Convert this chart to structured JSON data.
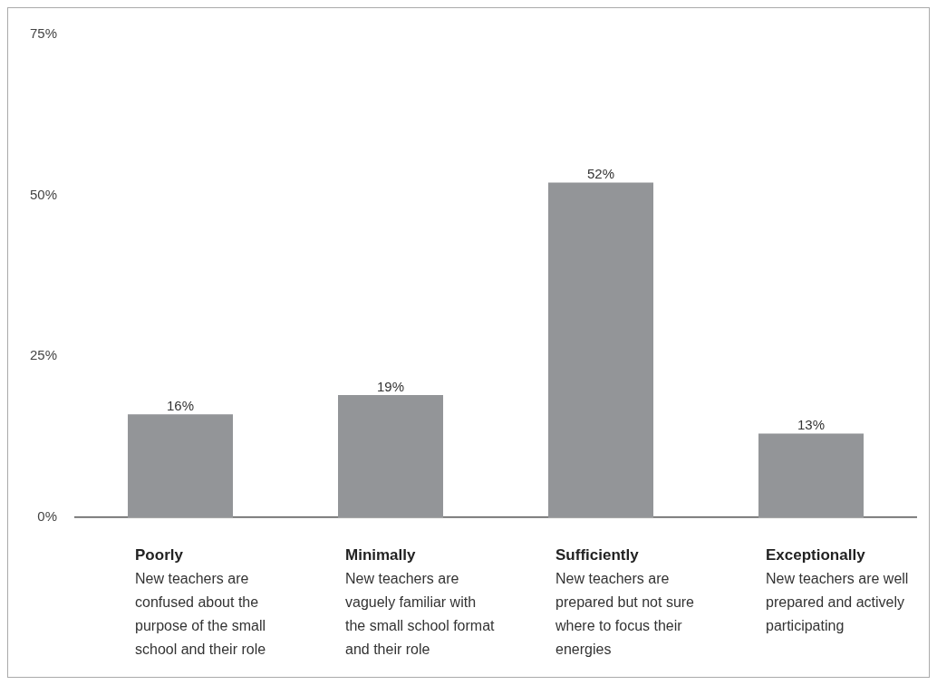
{
  "chart_data": {
    "type": "bar",
    "categories": [
      "Poorly",
      "Minimally",
      "Sufficiently",
      "Exceptionally"
    ],
    "values": [
      16,
      19,
      52,
      13
    ],
    "value_labels": [
      "16%",
      "19%",
      "52%",
      "13%"
    ],
    "color": "#939598",
    "annotations": [
      "New teachers are confused about the purpose of the small school and their role",
      "New teachers are vaguely familiar with the small school format and their role",
      "New teachers are prepared but not sure where to focus their energies",
      "New teachers are well prepared and actively participating"
    ],
    "ylim": [
      0,
      75
    ],
    "yticks": [
      {
        "value": 0,
        "label": "0%"
      },
      {
        "value": 25,
        "label": "25%"
      },
      {
        "value": 50,
        "label": "50%"
      },
      {
        "value": 75,
        "label": "75%"
      }
    ],
    "grid": false,
    "legend": false
  }
}
